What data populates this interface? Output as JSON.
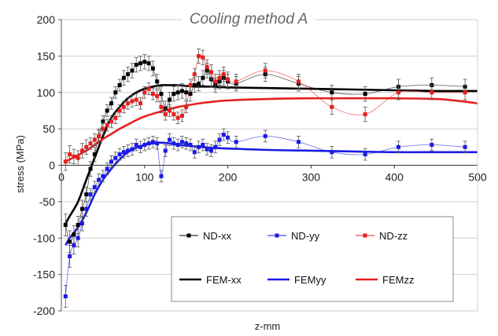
{
  "chart_data": {
    "type": "line",
    "title": "Cooling method A",
    "xlabel": "z-mm",
    "ylabel": "stress (MPa)",
    "xlim": [
      0,
      500
    ],
    "ylim": [
      -200,
      200
    ],
    "x_ticks": [
      0,
      100,
      200,
      300,
      400,
      500
    ],
    "y_ticks": [
      -200,
      -150,
      -100,
      -50,
      0,
      50,
      100,
      150,
      200
    ],
    "grid": "horizontal",
    "legend_position": "lower-center",
    "series": [
      {
        "name": "ND-xx",
        "kind": "measured",
        "color": "#000000",
        "x": [
          5,
          10,
          15,
          20,
          25,
          30,
          35,
          40,
          45,
          50,
          55,
          60,
          65,
          70,
          75,
          80,
          85,
          90,
          95,
          100,
          105,
          110,
          115,
          120,
          125,
          130,
          135,
          140,
          145,
          150,
          155,
          160,
          165,
          170,
          175,
          180,
          185,
          190,
          195,
          200,
          210,
          245,
          285,
          325,
          365,
          405,
          445,
          485
        ],
        "y": [
          -82,
          -105,
          -95,
          -82,
          -60,
          -40,
          -5,
          15,
          40,
          60,
          75,
          85,
          100,
          110,
          120,
          125,
          130,
          138,
          140,
          142,
          140,
          133,
          115,
          98,
          78,
          90,
          98,
          100,
          102,
          100,
          98,
          110,
          112,
          120,
          130,
          118,
          110,
          115,
          120,
          115,
          112,
          125,
          112,
          100,
          98,
          108,
          110,
          108
        ],
        "err": [
          15,
          15,
          12,
          12,
          12,
          10,
          10,
          10,
          10,
          8,
          8,
          8,
          8,
          8,
          10,
          10,
          10,
          10,
          10,
          10,
          10,
          10,
          10,
          10,
          10,
          10,
          10,
          10,
          10,
          10,
          10,
          10,
          10,
          10,
          10,
          10,
          10,
          10,
          10,
          10,
          10,
          10,
          10,
          10,
          10,
          10,
          10,
          10
        ]
      },
      {
        "name": "ND-yy",
        "kind": "measured",
        "color": "#1a1ae6",
        "x": [
          5,
          10,
          15,
          20,
          25,
          30,
          35,
          40,
          45,
          50,
          55,
          60,
          65,
          70,
          75,
          80,
          85,
          90,
          95,
          100,
          105,
          110,
          115,
          120,
          125,
          130,
          135,
          140,
          145,
          150,
          155,
          160,
          165,
          170,
          175,
          180,
          185,
          190,
          195,
          200,
          210,
          245,
          285,
          325,
          365,
          405,
          445,
          485
        ],
        "y": [
          -180,
          -125,
          -110,
          -100,
          -80,
          -60,
          -40,
          -30,
          -20,
          -15,
          -5,
          5,
          10,
          15,
          18,
          20,
          22,
          28,
          25,
          28,
          30,
          32,
          30,
          -15,
          20,
          35,
          30,
          28,
          32,
          30,
          28,
          18,
          25,
          28,
          22,
          20,
          25,
          35,
          42,
          38,
          32,
          40,
          32,
          18,
          15,
          25,
          28,
          25
        ],
        "err": [
          15,
          15,
          12,
          12,
          10,
          10,
          8,
          8,
          8,
          8,
          8,
          8,
          8,
          8,
          8,
          8,
          8,
          8,
          8,
          8,
          8,
          8,
          8,
          8,
          8,
          8,
          8,
          8,
          8,
          8,
          8,
          8,
          8,
          8,
          8,
          8,
          8,
          8,
          8,
          8,
          8,
          8,
          8,
          8,
          8,
          8,
          8,
          8
        ]
      },
      {
        "name": "ND-zz",
        "kind": "measured",
        "color": "#e62020",
        "x": [
          5,
          10,
          15,
          20,
          25,
          30,
          35,
          40,
          45,
          50,
          55,
          60,
          65,
          70,
          75,
          80,
          85,
          90,
          95,
          100,
          105,
          110,
          115,
          120,
          125,
          130,
          135,
          140,
          145,
          150,
          155,
          160,
          165,
          170,
          175,
          180,
          185,
          190,
          195,
          200,
          210,
          245,
          285,
          325,
          365,
          405,
          445,
          485
        ],
        "y": [
          5,
          15,
          12,
          10,
          20,
          25,
          30,
          35,
          40,
          50,
          55,
          60,
          65,
          75,
          80,
          85,
          88,
          90,
          85,
          100,
          105,
          98,
          95,
          80,
          70,
          75,
          70,
          65,
          68,
          80,
          110,
          125,
          150,
          148,
          135,
          128,
          115,
          120,
          125,
          118,
          115,
          130,
          115,
          80,
          70,
          100,
          100,
          100
        ],
        "err": [
          12,
          12,
          10,
          10,
          10,
          10,
          8,
          8,
          8,
          8,
          8,
          8,
          8,
          8,
          8,
          8,
          8,
          8,
          8,
          8,
          8,
          8,
          8,
          8,
          8,
          8,
          8,
          8,
          8,
          8,
          8,
          8,
          10,
          10,
          10,
          10,
          10,
          10,
          10,
          10,
          10,
          10,
          10,
          10,
          10,
          10,
          10,
          10
        ]
      },
      {
        "name": "FEM-xx",
        "kind": "fit",
        "color": "#000000",
        "x": [
          5,
          10,
          20,
          30,
          40,
          50,
          60,
          70,
          80,
          90,
          100,
          110,
          120,
          130,
          140,
          150,
          160,
          180,
          200,
          250,
          300,
          350,
          400,
          450,
          500
        ],
        "y": [
          -80,
          -70,
          -50,
          -20,
          10,
          40,
          65,
          80,
          92,
          100,
          105,
          108,
          110,
          110,
          110,
          109,
          108,
          108,
          107,
          106,
          105,
          104,
          103,
          102,
          102
        ]
      },
      {
        "name": "FEMyy",
        "kind": "fit",
        "color": "#1a1ae6",
        "x": [
          5,
          10,
          20,
          30,
          40,
          50,
          60,
          70,
          80,
          90,
          100,
          110,
          120,
          130,
          140,
          160,
          180,
          200,
          250,
          300,
          350,
          400,
          450,
          500
        ],
        "y": [
          -110,
          -100,
          -85,
          -65,
          -40,
          -20,
          -5,
          8,
          18,
          24,
          28,
          30,
          31,
          30,
          28,
          26,
          24,
          23,
          21,
          20,
          19,
          18,
          18,
          18
        ]
      },
      {
        "name": "FEMzz",
        "kind": "fit",
        "color": "#e62020",
        "x": [
          5,
          10,
          20,
          30,
          40,
          50,
          60,
          70,
          80,
          90,
          100,
          120,
          140,
          160,
          180,
          200,
          250,
          300,
          350,
          400,
          450,
          480,
          500
        ],
        "y": [
          5,
          8,
          14,
          20,
          28,
          36,
          43,
          50,
          56,
          62,
          67,
          74,
          80,
          84,
          87,
          89,
          91,
          92,
          92,
          92,
          91,
          88,
          85
        ]
      }
    ]
  }
}
